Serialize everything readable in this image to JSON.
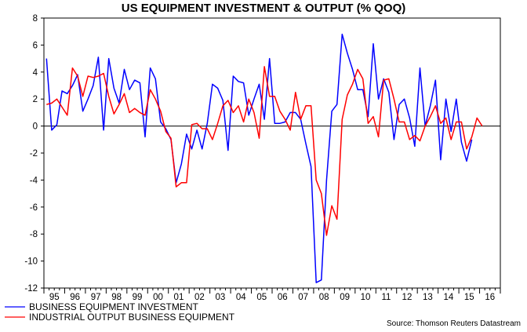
{
  "chart_data": {
    "type": "line",
    "title": "US EQUIPMENT INVESTMENT & OUTPUT (% QOQ)",
    "xlabel": "",
    "ylabel": "",
    "ylim": [
      -12,
      8
    ],
    "yticks": [
      8,
      6,
      4,
      2,
      0,
      -2,
      -4,
      -6,
      -8,
      -10,
      -12
    ],
    "xticklabels": [
      "95",
      "96",
      "97",
      "98",
      "99",
      "00",
      "01",
      "02",
      "03",
      "04",
      "05",
      "06",
      "07",
      "08",
      "09",
      "10",
      "11",
      "12",
      "13",
      "14",
      "15",
      "16"
    ],
    "x_start_year": 1995,
    "grid": false,
    "zero_line": true,
    "source": "Source: Thomson Reuters Datastream",
    "series": [
      {
        "name": "BUSINESS EQUIPMENT INVESTMENT",
        "color": "#0000ff",
        "values": [
          5.0,
          -0.3,
          0.1,
          2.6,
          2.4,
          3.0,
          3.8,
          1.1,
          2.0,
          3.0,
          5.1,
          -0.3,
          5.0,
          2.8,
          1.7,
          4.2,
          2.7,
          3.4,
          3.2,
          -0.8,
          4.3,
          3.5,
          0.3,
          -0.2,
          -1.0,
          -4.2,
          -2.8,
          -0.6,
          -1.7,
          -0.3,
          -1.7,
          0.2,
          3.1,
          2.8,
          1.9,
          -1.8,
          3.7,
          3.3,
          3.2,
          0.8,
          2.0,
          3.1,
          0.5,
          5.0,
          0.2,
          0.2,
          0.3,
          1.0,
          1.0,
          0.5,
          -1.3,
          -3.0,
          -11.6,
          -11.4,
          -4.0,
          1.1,
          1.6,
          6.8,
          5.4,
          4.2,
          2.7,
          2.7,
          0.7,
          6.1,
          2.0,
          3.5,
          2.5,
          -1.0,
          1.6,
          2.0,
          0.6,
          -1.5,
          4.3,
          0.0,
          1.5,
          3.4,
          -2.5,
          2.0,
          -0.4,
          2.0,
          -1.2,
          -2.6,
          -1.0
        ]
      },
      {
        "name": "INDUSTRIAL OUTPUT BUSINESS EQUIPMENT",
        "color": "#ff0000",
        "values": [
          1.6,
          1.7,
          2.0,
          1.4,
          0.8,
          4.3,
          3.7,
          2.2,
          3.7,
          3.6,
          3.7,
          3.9,
          2.2,
          0.9,
          1.6,
          2.4,
          1.0,
          1.3,
          1.0,
          0.8,
          2.7,
          2.0,
          1.1,
          -0.4,
          -0.9,
          -4.5,
          -4.2,
          -4.2,
          0.1,
          0.2,
          -0.2,
          -0.2,
          -1.0,
          0.2,
          1.5,
          1.9,
          1.0,
          1.5,
          0.3,
          2.0,
          1.0,
          -0.9,
          4.4,
          2.2,
          2.2,
          1.1,
          0.5,
          -0.3,
          2.5,
          0.5,
          1.5,
          1.5,
          -4.0,
          -5.0,
          -8.1,
          -5.9,
          -6.9,
          0.5,
          2.3,
          3.1,
          4.2,
          3.5,
          0.2,
          0.7,
          -0.8,
          3.4,
          3.5,
          2.0,
          0.3,
          0.3,
          -1.0,
          -0.7,
          -1.1,
          0.0,
          0.7,
          1.5,
          0.2,
          0.6,
          -1.0,
          0.3,
          0.3,
          -1.7,
          -0.8,
          0.6,
          0.0
        ]
      }
    ]
  }
}
